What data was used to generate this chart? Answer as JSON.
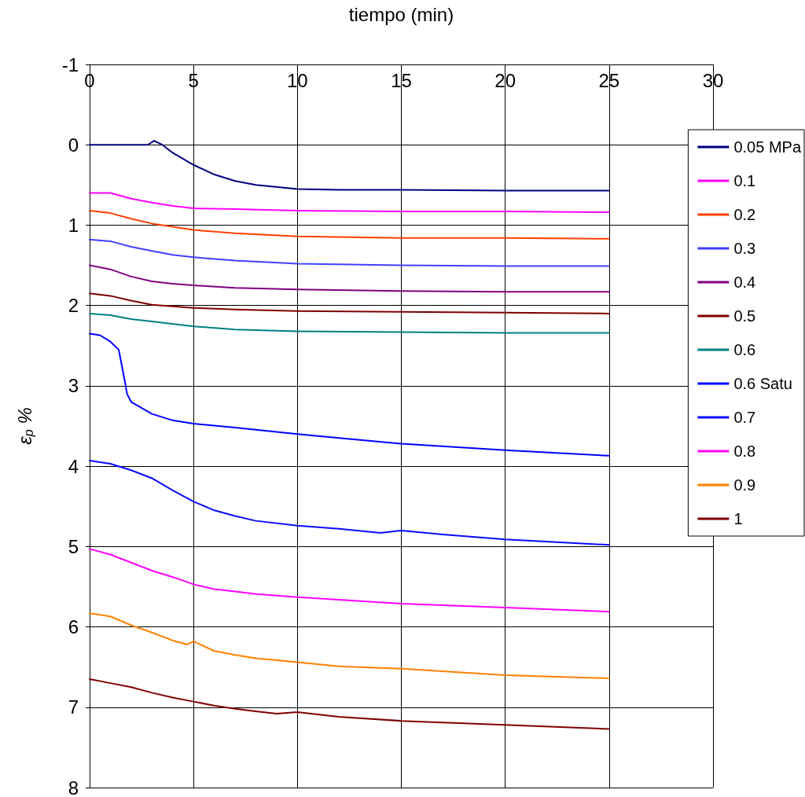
{
  "chart_data": {
    "type": "line",
    "xlabel": "tiempo (min)",
    "ylabel": "ε$_{p}$ %",
    "xlim": [
      0,
      30
    ],
    "xticks": [
      0,
      5,
      10,
      15,
      20,
      25,
      30
    ],
    "ylim": [
      8,
      -1
    ],
    "yticks": [
      -1,
      0,
      1,
      2,
      3,
      4,
      5,
      6,
      7,
      8
    ],
    "grid": true,
    "legend": "right",
    "marker": "none",
    "line_style": "solid",
    "series": [
      {
        "name": "0.05 MPa",
        "color": "#000080",
        "x": [
          0,
          1,
          2,
          2.8,
          3.1,
          3.5,
          4,
          5,
          6,
          7,
          8,
          10,
          12,
          15,
          20,
          25
        ],
        "values": [
          0,
          0,
          0,
          0,
          -0.05,
          0,
          0.1,
          0.25,
          0.37,
          0.45,
          0.5,
          0.55,
          0.56,
          0.56,
          0.57,
          0.57
        ]
      },
      {
        "name": "0.1",
        "color": "#ff00ff",
        "x": [
          0,
          1,
          2,
          3,
          4,
          5,
          7,
          10,
          15,
          20,
          25
        ],
        "values": [
          0.6,
          0.6,
          0.67,
          0.72,
          0.76,
          0.79,
          0.8,
          0.82,
          0.83,
          0.83,
          0.84
        ]
      },
      {
        "name": "0.2",
        "color": "#ff4000",
        "x": [
          0,
          1,
          2,
          3,
          4,
          5,
          7,
          10,
          15,
          20,
          25
        ],
        "values": [
          0.82,
          0.85,
          0.92,
          0.98,
          1.02,
          1.06,
          1.1,
          1.14,
          1.16,
          1.16,
          1.17
        ]
      },
      {
        "name": "0.3",
        "color": "#4040ff",
        "x": [
          0,
          1,
          2,
          3,
          4,
          5,
          7,
          10,
          15,
          20,
          25
        ],
        "values": [
          1.18,
          1.2,
          1.27,
          1.32,
          1.37,
          1.4,
          1.44,
          1.48,
          1.5,
          1.51,
          1.51
        ]
      },
      {
        "name": "0.4",
        "color": "#800080",
        "x": [
          0,
          1,
          2,
          3,
          4,
          5,
          7,
          10,
          15,
          20,
          25
        ],
        "values": [
          1.5,
          1.55,
          1.64,
          1.7,
          1.73,
          1.75,
          1.78,
          1.8,
          1.82,
          1.83,
          1.83
        ]
      },
      {
        "name": "0.5",
        "color": "#800000",
        "x": [
          0,
          1,
          2,
          3,
          5,
          7,
          10,
          15,
          20,
          25
        ],
        "values": [
          1.85,
          1.88,
          1.94,
          1.99,
          2.03,
          2.05,
          2.07,
          2.08,
          2.09,
          2.1
        ]
      },
      {
        "name": "0.6",
        "color": "#008080",
        "x": [
          0,
          1,
          2,
          3,
          5,
          7,
          10,
          15,
          20,
          25
        ],
        "values": [
          2.1,
          2.12,
          2.17,
          2.2,
          2.26,
          2.3,
          2.32,
          2.33,
          2.34,
          2.34
        ]
      },
      {
        "name": "0.6 Satu",
        "color": "#0000ff",
        "x": [
          0,
          0.5,
          1,
          1.4,
          1.7,
          1.8,
          2,
          3,
          4,
          5,
          7,
          10,
          12,
          15,
          20,
          25
        ],
        "values": [
          2.35,
          2.37,
          2.45,
          2.55,
          2.95,
          3.1,
          3.2,
          3.35,
          3.43,
          3.47,
          3.52,
          3.6,
          3.65,
          3.72,
          3.8,
          3.87
        ]
      },
      {
        "name": "0.7",
        "color": "#0a0aff",
        "x": [
          0,
          1,
          2,
          3,
          4,
          5,
          6,
          7,
          8,
          10,
          12,
          14,
          15,
          17,
          20,
          25
        ],
        "values": [
          3.93,
          3.97,
          4.05,
          4.15,
          4.3,
          4.44,
          4.55,
          4.62,
          4.68,
          4.74,
          4.78,
          4.83,
          4.8,
          4.85,
          4.91,
          4.98
        ]
      },
      {
        "name": "0.8",
        "color": "#ff00ff",
        "x": [
          0,
          1,
          2,
          3,
          4,
          5,
          6,
          7,
          8,
          10,
          15,
          20,
          25
        ],
        "values": [
          5.03,
          5.1,
          5.2,
          5.3,
          5.38,
          5.47,
          5.53,
          5.56,
          5.59,
          5.63,
          5.71,
          5.76,
          5.81
        ]
      },
      {
        "name": "0.9",
        "color": "#ff8000",
        "x": [
          0,
          1,
          2,
          3,
          4,
          4.7,
          5,
          6,
          7,
          8,
          10,
          12,
          15,
          20,
          25
        ],
        "values": [
          5.83,
          5.87,
          5.98,
          6.07,
          6.17,
          6.22,
          6.18,
          6.3,
          6.35,
          6.39,
          6.44,
          6.49,
          6.52,
          6.6,
          6.64
        ]
      },
      {
        "name": "1",
        "color": "#800000",
        "x": [
          0,
          1,
          2,
          3,
          4,
          5,
          6,
          7,
          8,
          9,
          10,
          12,
          15,
          20,
          25
        ],
        "values": [
          6.65,
          6.7,
          6.75,
          6.82,
          6.88,
          6.93,
          6.98,
          7.02,
          7.05,
          7.08,
          7.06,
          7.12,
          7.17,
          7.22,
          7.27
        ]
      }
    ]
  }
}
